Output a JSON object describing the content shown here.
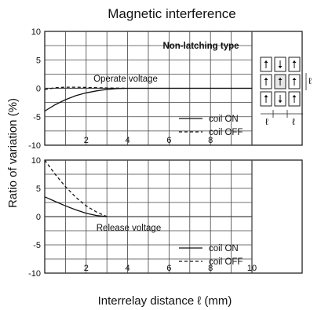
{
  "figure": {
    "title": "Magnetic interference",
    "xlabel": "Interrelay distance ℓ (mm)",
    "ylabel": "Ratio of variation (%)",
    "type_label": "Non-latching type",
    "inset": {
      "dimension_symbol": "ℓ"
    }
  },
  "chart_data": [
    {
      "type": "line",
      "panel": "top",
      "annotation": "Operate voltage",
      "xlim": [
        0,
        10
      ],
      "ylim": [
        -10,
        10
      ],
      "xticks": [
        2,
        4,
        6,
        8
      ],
      "yticks": [
        10,
        5,
        0,
        -5,
        -10
      ],
      "grid": true,
      "legend": "bottom-right",
      "series": [
        {
          "name": "coil ON",
          "style": "solid",
          "x": [
            0,
            0.5,
            1,
            1.5,
            2,
            2.5,
            3,
            3.5,
            4,
            5,
            6,
            8,
            10
          ],
          "y": [
            -4,
            -2.9,
            -2.0,
            -1.3,
            -0.8,
            -0.45,
            -0.2,
            -0.05,
            0,
            0,
            0,
            0,
            0
          ]
        },
        {
          "name": "coil OFF",
          "style": "dashed",
          "x": [
            0,
            0.5,
            1,
            1.5,
            2,
            3,
            4
          ],
          "y": [
            -0.2,
            0.1,
            0.2,
            0.2,
            0.15,
            0.05,
            0
          ]
        }
      ]
    },
    {
      "type": "line",
      "panel": "bottom",
      "annotation": "Release voltage",
      "xlim": [
        0,
        10
      ],
      "ylim": [
        -10,
        10
      ],
      "xticks": [
        2,
        4,
        6,
        8,
        10
      ],
      "yticks": [
        10,
        5,
        0,
        -5,
        -10
      ],
      "grid": true,
      "legend": "bottom-right",
      "series": [
        {
          "name": "coil ON",
          "style": "solid",
          "x": [
            0,
            0.5,
            1,
            1.5,
            2,
            2.5,
            3
          ],
          "y": [
            3.5,
            2.7,
            1.9,
            1.2,
            0.6,
            0.2,
            0
          ]
        },
        {
          "name": "coil OFF",
          "style": "dashed",
          "x": [
            0,
            0.5,
            1,
            1.5,
            2,
            2.5,
            3
          ],
          "y": [
            10,
            7.5,
            5.3,
            3.4,
            1.9,
            0.8,
            0
          ]
        }
      ]
    }
  ]
}
